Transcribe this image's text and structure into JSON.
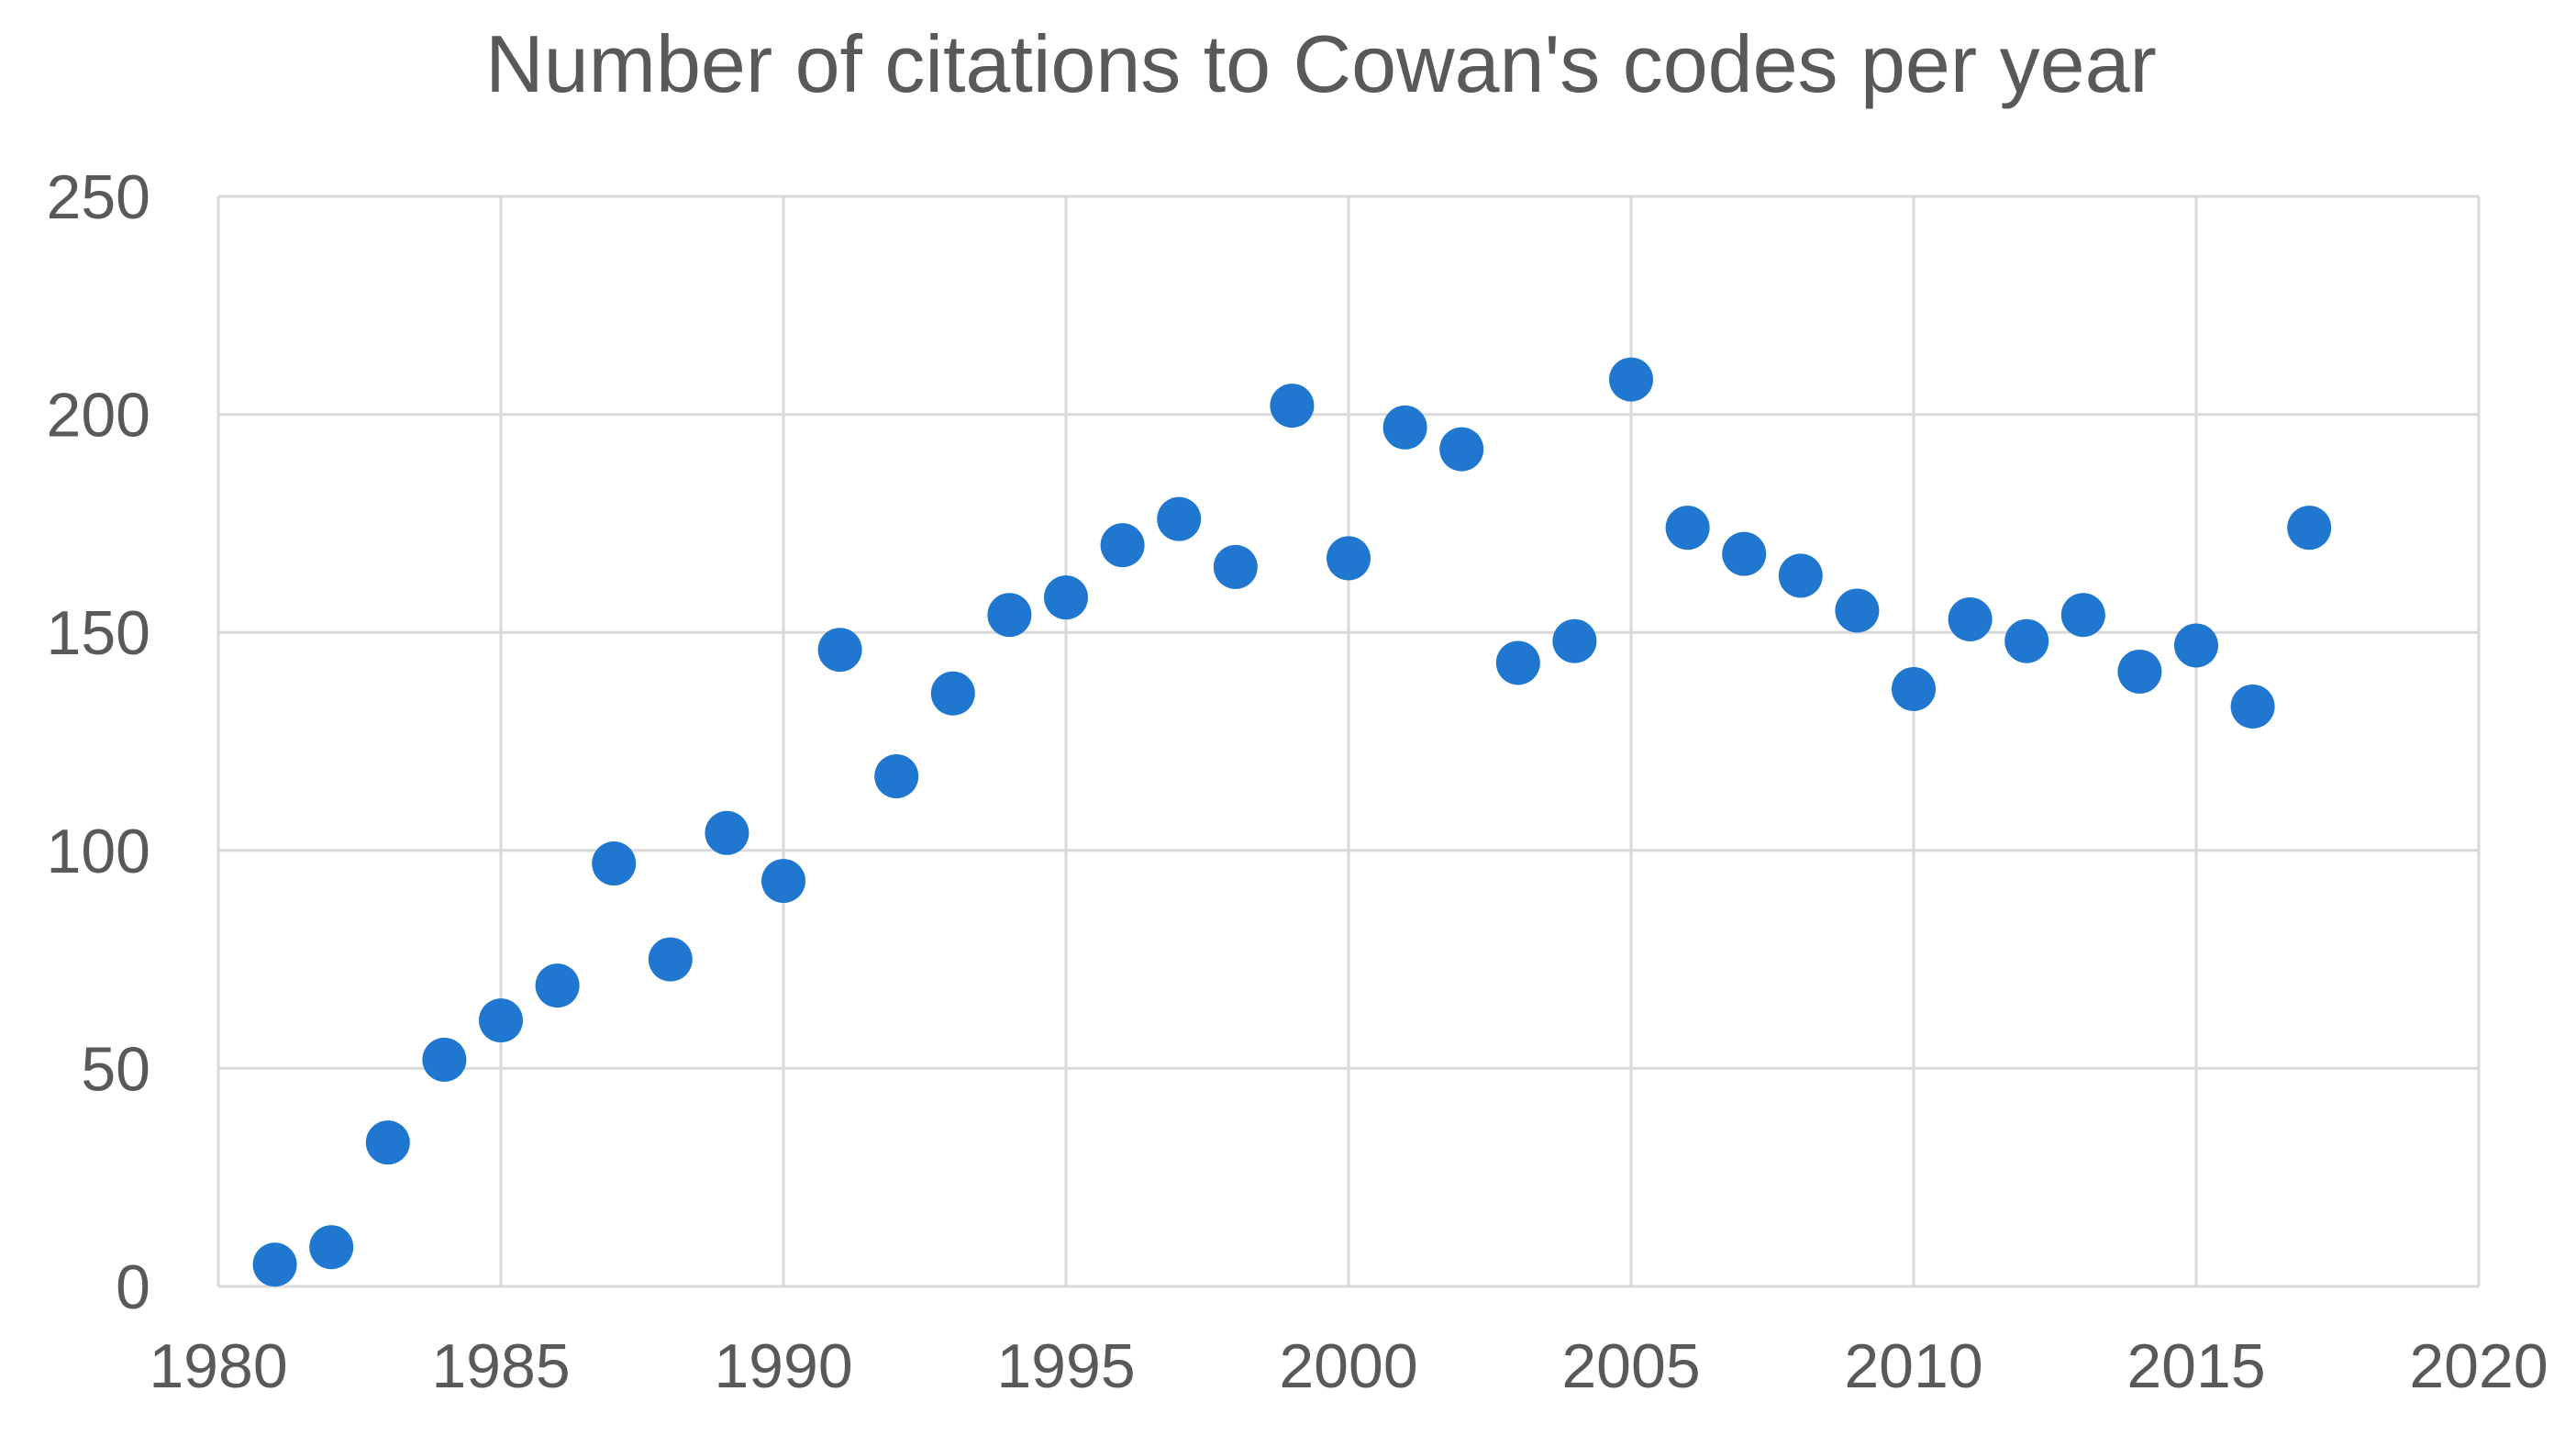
{
  "chart_data": {
    "type": "scatter",
    "title": "Number of citations to Cowan's codes per year",
    "xlabel": "",
    "ylabel": "",
    "xlim": [
      1980,
      2020
    ],
    "ylim": [
      0,
      250
    ],
    "x_ticks": [
      1980,
      1985,
      1990,
      1995,
      2000,
      2005,
      2010,
      2015,
      2020
    ],
    "y_ticks": [
      0,
      50,
      100,
      150,
      200,
      250
    ],
    "grid": true,
    "legend": "none",
    "marker_color": "#1f77d0",
    "series": [
      {
        "x": [
          1981,
          1982,
          1983,
          1984,
          1985,
          1986,
          1987,
          1988,
          1989,
          1990,
          1991,
          1992,
          1993,
          1994,
          1995,
          1996,
          1997,
          1998,
          1999,
          2000,
          2001,
          2002,
          2003,
          2004,
          2005,
          2006,
          2007,
          2008,
          2009,
          2010,
          2011,
          2012,
          2013,
          2014,
          2015,
          2016,
          2017
        ],
        "y": [
          5,
          9,
          33,
          52,
          61,
          69,
          97,
          75,
          104,
          93,
          146,
          117,
          136,
          154,
          158,
          170,
          176,
          165,
          202,
          167,
          197,
          192,
          143,
          148,
          208,
          174,
          168,
          163,
          155,
          137,
          153,
          148,
          154,
          141,
          147,
          133,
          174
        ]
      }
    ]
  }
}
